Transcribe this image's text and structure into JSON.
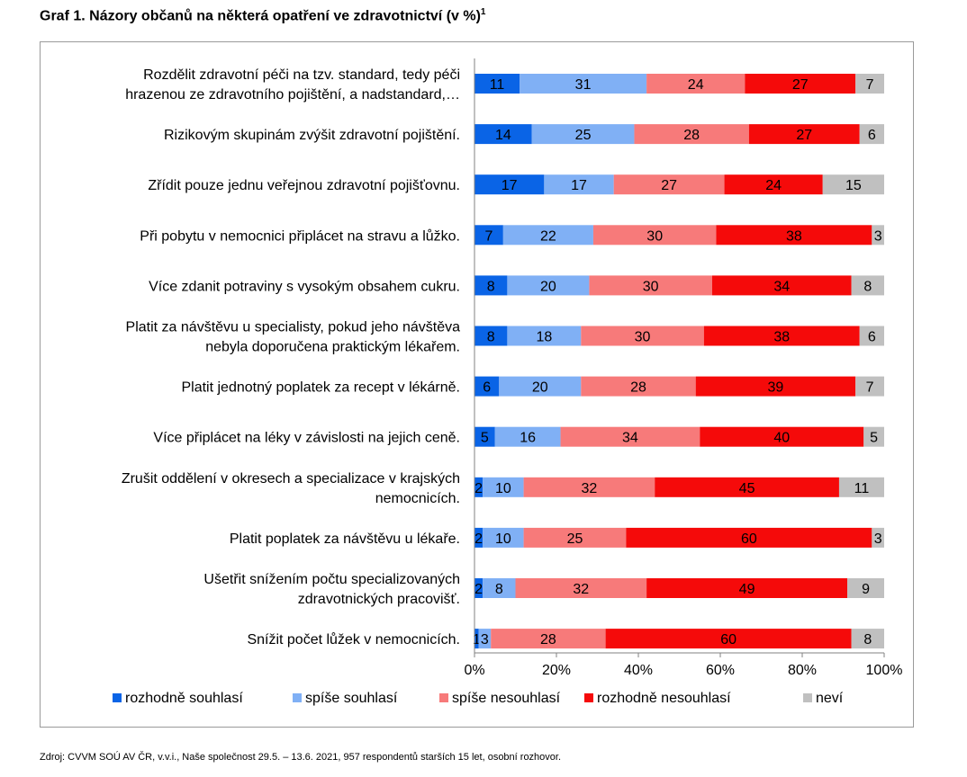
{
  "title": "Graf 1. Názory občanů na některá opatření ve zdravotnictví (v %)",
  "title_footnote": "1",
  "source": "Zdroj: CVVM SOÚ AV ČR, v.v.i., Naše společnost 29.5. – 13.6. 2021, 957 respondentů starších 15 let, osobní rozhovor.",
  "chart_data": {
    "type": "bar",
    "orientation": "horizontal",
    "stacked": "percent",
    "categories": [
      [
        "Rozdělit zdravotní péči na tzv. standard, tedy péči",
        "hrazenou ze zdravotního pojištění, a nadstandard,…"
      ],
      [
        "Rizikovým skupinám zvýšit zdravotní pojištění."
      ],
      [
        "Zřídit pouze jednu veřejnou zdravotní pojišťovnu."
      ],
      [
        "Při pobytu v nemocnici připlácet na stravu a lůžko."
      ],
      [
        "Více zdanit potraviny s vysokým obsahem cukru."
      ],
      [
        "Platit za návštěvu u specialisty, pokud jeho návštěva",
        "nebyla doporučena praktickým lékařem."
      ],
      [
        "Platit jednotný poplatek za recept v lékárně."
      ],
      [
        "Více připlácet na léky v závislosti na jejich ceně."
      ],
      [
        "Zrušit oddělení v okresech a specializace v krajských",
        "nemocnicích."
      ],
      [
        "Platit poplatek za návštěvu u lékaře."
      ],
      [
        "Ušetřit snížením počtu specializovaných",
        "zdravotnických pracovišť."
      ],
      [
        "Snížit počet lůžek v nemocnicích."
      ]
    ],
    "series": [
      {
        "name": "rozhodně souhlasí",
        "color": "#0a64e6",
        "values": [
          11,
          14,
          17,
          7,
          8,
          8,
          6,
          5,
          2,
          2,
          2,
          1
        ]
      },
      {
        "name": "spíše souhlasí",
        "color": "#80b0f5",
        "values": [
          31,
          25,
          17,
          22,
          20,
          18,
          20,
          16,
          10,
          10,
          8,
          3
        ]
      },
      {
        "name": "spíše nesouhlasí",
        "color": "#f77a7a",
        "values": [
          24,
          28,
          27,
          30,
          30,
          30,
          28,
          34,
          32,
          25,
          32,
          28
        ]
      },
      {
        "name": "rozhodně nesouhlasí",
        "color": "#f50a0a",
        "values": [
          27,
          27,
          24,
          38,
          34,
          38,
          39,
          40,
          45,
          60,
          49,
          60
        ]
      },
      {
        "name": "neví",
        "color": "#c0c0c0",
        "values": [
          7,
          6,
          15,
          3,
          8,
          6,
          7,
          5,
          11,
          3,
          9,
          8
        ]
      }
    ],
    "x_ticks": [
      "0%",
      "20%",
      "40%",
      "60%",
      "80%",
      "100%"
    ],
    "xlim": [
      0,
      100
    ],
    "grid": false,
    "legend": "bottom"
  }
}
